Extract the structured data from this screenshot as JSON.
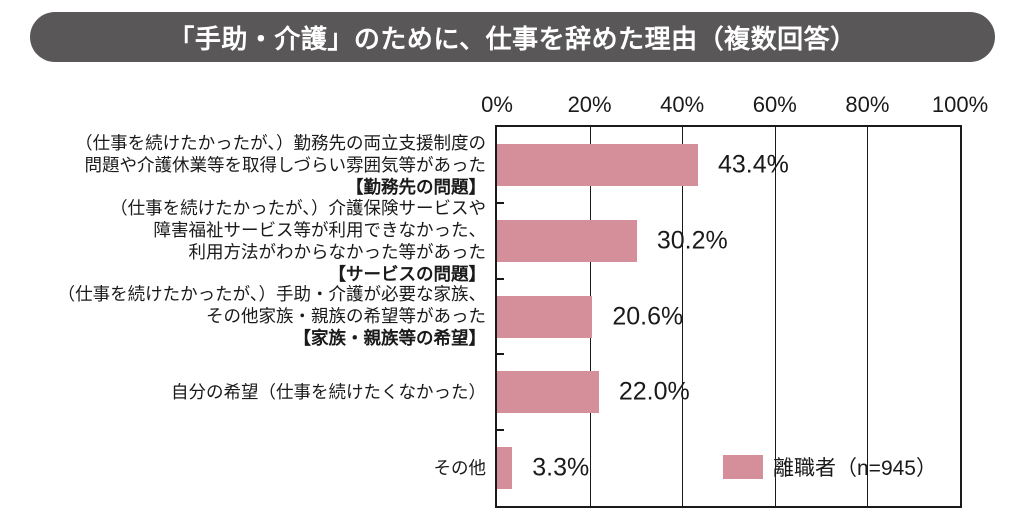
{
  "chart_data": {
    "type": "bar",
    "orientation": "horizontal",
    "title": "「手助・介護」のために、仕事を辞めた理由（複数回答）",
    "categories": [
      "（仕事を続けたかったが、）勤務先の両立支援制度の問題や介護休業等を取得しづらい雰囲気等があった【勤務先の問題】",
      "（仕事を続けたかったが、）介護保険サービスや障害福祉サービス等が利用できなかった、利用方法がわからなかった等があった【サービスの問題】",
      "（仕事を続けたかったが、）手助・介護が必要な家族、その他家族・親族の希望等があった【家族・親族等の希望】",
      "自分の希望（仕事を続けたくなかった）",
      "その他"
    ],
    "category_lines": [
      [
        "（仕事を続けたかったが、）勤務先の両立支援制度の",
        "問題や介護休業等を取得しづらい雰囲気等があった",
        "【勤務先の問題】"
      ],
      [
        "（仕事を続けたかったが、）介護保険サービスや",
        "障害福祉サービス等が利用できなかった、",
        "利用方法がわからなかった等があった",
        "【サービスの問題】"
      ],
      [
        "（仕事を続けたかったが、）手助・介護が必要な家族、",
        "その他家族・親族の希望等があった",
        "【家族・親族等の希望】"
      ],
      [
        "自分の希望（仕事を続けたくなかった）"
      ],
      [
        "その他"
      ]
    ],
    "values": [
      43.4,
      30.2,
      20.6,
      22.0,
      3.3
    ],
    "value_labels": [
      "43.4%",
      "30.2%",
      "20.6%",
      "22.0%",
      "3.3%"
    ],
    "xlim": [
      0,
      100
    ],
    "x_ticks": [
      "0%",
      "20%",
      "40%",
      "60%",
      "80%",
      "100%"
    ],
    "grid": true,
    "legend": {
      "label": "離職者（n=945）",
      "position": "inside-bottom-right"
    },
    "colors": {
      "bar": "#d58f9b",
      "title_banner_bg": "#595757",
      "title_text": "#ffffff",
      "axis_line": "#1a1a1a",
      "text": "#1a1a1a"
    }
  }
}
